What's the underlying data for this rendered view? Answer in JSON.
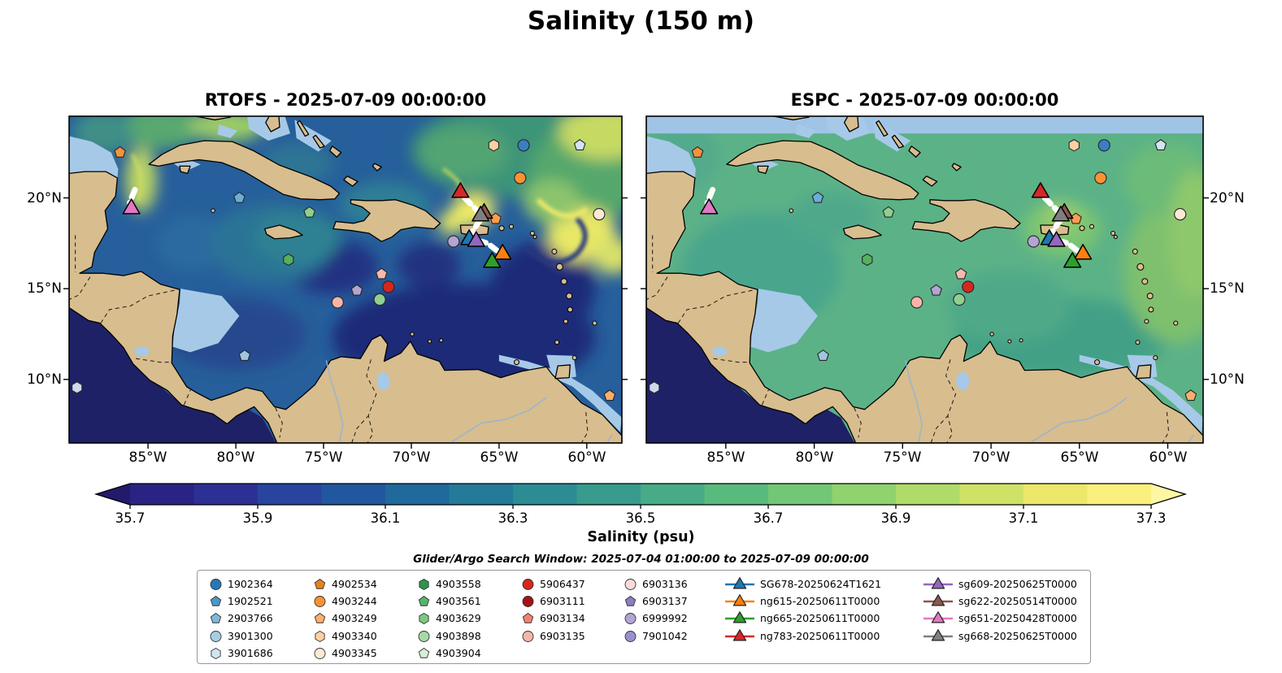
{
  "figure": {
    "title": "Salinity (150 m)",
    "colorbar_label": "Salinity (psu)",
    "search_window": "Glider/Argo Search Window: 2025-07-04 01:00:00 to 2025-07-09 00:00:00",
    "style": {
      "land_color": "#d8bd8e",
      "coastline": "#000000",
      "shallow_mask": "#a6c9e8",
      "pacific_deep": "#1f2166",
      "track_color": "#ffffff",
      "rtofs_base": "#265f9b",
      "espc_base": "#5cb287",
      "espc_top_band": "#a0c4e6"
    }
  },
  "panels": [
    {
      "id": "rtofs",
      "title": "RTOFS - 2025-07-09 00:00:00"
    },
    {
      "id": "espc",
      "title": "ESPC - 2025-07-09 00:00:00"
    }
  ],
  "axes": {
    "lon_ticks": [
      {
        "label": "85°W",
        "deg_west": 85
      },
      {
        "label": "80°W",
        "deg_west": 80
      },
      {
        "label": "75°W",
        "deg_west": 75
      },
      {
        "label": "70°W",
        "deg_west": 70
      },
      {
        "label": "65°W",
        "deg_west": 65
      },
      {
        "label": "60°W",
        "deg_west": 60
      }
    ],
    "lat_ticks": [
      {
        "label": "20°N",
        "deg_north": 20
      },
      {
        "label": "15°N",
        "deg_north": 15
      },
      {
        "label": "10°N",
        "deg_north": 10
      }
    ],
    "lon_range_deg_west": [
      89.5,
      58.0
    ],
    "lat_range_deg_north": [
      6.5,
      24.5
    ]
  },
  "colorbar": {
    "ticks": [
      "35.7",
      "35.9",
      "36.1",
      "36.3",
      "36.5",
      "36.7",
      "36.9",
      "37.1",
      "37.3"
    ],
    "min": 35.7,
    "max": 37.3,
    "bin": 0.1,
    "under_color": "#241a6b",
    "over_color": "#fdf7a3",
    "segment_colors": [
      "#2a2383",
      "#2c3095",
      "#28449f",
      "#21579e",
      "#1f699b",
      "#247a98",
      "#2d8b94",
      "#389b8e",
      "#46ab86",
      "#59ba7d",
      "#72c776",
      "#90d26e",
      "#b0db68",
      "#d0e266",
      "#ebe86a",
      "#f9f07d"
    ]
  },
  "legend": {
    "argo_columns": [
      [
        {
          "id": "1902364",
          "shape": "circle",
          "color": "#2878b8"
        },
        {
          "id": "1902521",
          "shape": "pentagon",
          "color": "#4a98c9"
        },
        {
          "id": "2903766",
          "shape": "pentagon",
          "color": "#7db8da"
        },
        {
          "id": "3901300",
          "shape": "circle",
          "color": "#a6cee3"
        },
        {
          "id": "3901686",
          "shape": "hexagon",
          "color": "#d0e4f2"
        }
      ],
      [
        {
          "id": "4902534",
          "shape": "pentagon",
          "color": "#e6821e"
        },
        {
          "id": "4903244",
          "shape": "circle",
          "color": "#fd9232"
        },
        {
          "id": "4903249",
          "shape": "pentagon",
          "color": "#fdae6b"
        },
        {
          "id": "4903340",
          "shape": "hexagon",
          "color": "#fdd0a2"
        },
        {
          "id": "4903345",
          "shape": "circle",
          "color": "#fee9d4"
        }
      ],
      [
        {
          "id": "4903558",
          "shape": "hexagon",
          "color": "#2e954a"
        },
        {
          "id": "4903561",
          "shape": "pentagon",
          "color": "#55b567"
        },
        {
          "id": "4903629",
          "shape": "hexagon",
          "color": "#7cc87c"
        },
        {
          "id": "4903898",
          "shape": "circle",
          "color": "#a5d9a5"
        },
        {
          "id": "4903904",
          "shape": "pentagon",
          "color": "#d6eed6"
        }
      ],
      [
        {
          "id": "5906437",
          "shape": "circle",
          "color": "#d7261e"
        },
        {
          "id": "6903111",
          "shape": "circle",
          "color": "#a81016"
        },
        {
          "id": "6903134",
          "shape": "pentagon",
          "color": "#f4826e"
        },
        {
          "id": "6903135",
          "shape": "circle",
          "color": "#f9b4a8"
        }
      ],
      [
        {
          "id": "6903136",
          "shape": "circle",
          "color": "#fbdcd8"
        },
        {
          "id": "6903137",
          "shape": "pentagon",
          "color": "#8d7cc0"
        },
        {
          "id": "6999992",
          "shape": "circle",
          "color": "#b3a5d4"
        },
        {
          "id": "7901042",
          "shape": "circle",
          "color": "#9a8fd0"
        }
      ]
    ],
    "glider_columns": [
      [
        {
          "id": "SG678-20250624T1621",
          "color": "#1f77b4"
        },
        {
          "id": "ng615-20250611T0000",
          "color": "#ff7f0e"
        },
        {
          "id": "ng665-20250611T0000",
          "color": "#2ca02c"
        },
        {
          "id": "ng783-20250611T0000",
          "color": "#d62728"
        }
      ],
      [
        {
          "id": "sg609-20250625T0000",
          "color": "#9467bd"
        },
        {
          "id": "sg622-20250514T0000",
          "color": "#8c564b"
        },
        {
          "id": "sg651-20250428T0000",
          "color": "#e377c2"
        },
        {
          "id": "sg668-20250625T0000",
          "color": "#7f7f7f"
        }
      ]
    ]
  },
  "map_markers": {
    "argo": [
      {
        "shape": "pentagon",
        "color": "#f5923e",
        "lon_w": 86.6,
        "lat_n": 22.5
      },
      {
        "shape": "hexagon",
        "color": "#fdd0a2",
        "lon_w": 65.3,
        "lat_n": 22.9
      },
      {
        "shape": "circle",
        "color": "#3a7fc1",
        "lon_w": 63.6,
        "lat_n": 22.9
      },
      {
        "shape": "pentagon",
        "color": "#d4e4f4",
        "lon_w": 60.4,
        "lat_n": 22.9
      },
      {
        "shape": "circle",
        "color": "#fd9232",
        "lon_w": 63.8,
        "lat_n": 21.1
      },
      {
        "shape": "circle",
        "color": "#fde9d2",
        "lon_w": 59.3,
        "lat_n": 19.1
      },
      {
        "shape": "pentagon",
        "color": "#6baed6",
        "lon_w": 79.8,
        "lat_n": 20.0
      },
      {
        "shape": "pentagon",
        "color": "#8fcf8f",
        "lon_w": 75.8,
        "lat_n": 19.2
      },
      {
        "shape": "hexagon",
        "color": "#55b060",
        "lon_w": 77.0,
        "lat_n": 16.6
      },
      {
        "shape": "circle",
        "color": "#b3a5d4",
        "lon_w": 67.6,
        "lat_n": 17.6
      },
      {
        "shape": "pentagon",
        "color": "#fd9d4c",
        "lon_w": 65.2,
        "lat_n": 18.85
      },
      {
        "shape": "pentagon",
        "color": "#f8b8ae",
        "lon_w": 71.7,
        "lat_n": 15.8
      },
      {
        "shape": "circle",
        "color": "#d7261e",
        "lon_w": 71.3,
        "lat_n": 15.1
      },
      {
        "shape": "pentagon",
        "color": "#b3a5cf",
        "lon_w": 73.1,
        "lat_n": 14.9
      },
      {
        "shape": "circle",
        "color": "#8fd08f",
        "lon_w": 71.8,
        "lat_n": 14.4
      },
      {
        "shape": "circle",
        "color": "#f9b4a8",
        "lon_w": 74.2,
        "lat_n": 14.25
      },
      {
        "shape": "pentagon",
        "color": "#9fc6e0",
        "lon_w": 79.5,
        "lat_n": 11.3
      },
      {
        "shape": "hexagon",
        "color": "#cfd8ec",
        "lon_w": 89.05,
        "lat_n": 9.55
      },
      {
        "shape": "pentagon",
        "color": "#fdae6b",
        "lon_w": 58.7,
        "lat_n": 9.1
      }
    ],
    "gliders": [
      {
        "id": "sg651",
        "color": "#e377c2",
        "lon_w": 85.95,
        "lat_n": 19.4
      },
      {
        "id": "ng783",
        "color": "#d62728",
        "lon_w": 67.2,
        "lat_n": 20.3
      },
      {
        "id": "sg622",
        "color": "#8c564b",
        "lon_w": 65.85,
        "lat_n": 19.15
      },
      {
        "id": "sg668",
        "color": "#7f7f7f",
        "lon_w": 66.05,
        "lat_n": 19.0
      },
      {
        "id": "SG678",
        "color": "#1f77b4",
        "lon_w": 66.7,
        "l at_n_unused": 0,
        "lat_n": 17.7
      },
      {
        "id": "sg609",
        "color": "#9467bd",
        "lon_w": 66.3,
        "lat_n": 17.6
      },
      {
        "id": "ng615",
        "color": "#ff7f0e",
        "lon_w": 64.8,
        "lat_n": 16.9
      },
      {
        "id": "ng665",
        "color": "#2ca02c",
        "lon_w": 65.4,
        "lat_n": 16.45
      }
    ],
    "tracks": [
      [
        [
          85.75,
          20.45
        ],
        [
          86.05,
          19.75
        ],
        [
          85.9,
          19.45
        ]
      ],
      [
        [
          66.95,
          20.0
        ],
        [
          66.15,
          19.2
        ]
      ],
      [
        [
          66.05,
          18.8
        ],
        [
          66.5,
          18.2
        ],
        [
          66.45,
          17.85
        ]
      ],
      [
        [
          66.2,
          17.65
        ],
        [
          65.65,
          17.5
        ],
        [
          65.05,
          17.05
        ]
      ]
    ]
  },
  "chart_data": [
    {
      "type": "heatmap",
      "title": "RTOFS - 2025-07-09 00:00:00",
      "variable": "Salinity (psu) at 150 m",
      "x_ticks": [
        "85°W",
        "80°W",
        "75°W",
        "70°W",
        "65°W",
        "60°W"
      ],
      "y_ticks": [
        "10°N",
        "15°N",
        "20°N"
      ],
      "x_range_deg_west": [
        89.5,
        58.0
      ],
      "y_range_deg_north": [
        6.5,
        24.5
      ],
      "color_range": [
        35.7,
        37.3
      ],
      "colorbar_ticks": [
        35.7,
        35.9,
        36.1,
        36.3,
        36.5,
        36.7,
        36.9,
        37.1,
        37.3
      ],
      "field_summary": "Low salinity 35.7-36.1 over the central and southeastern Caribbean, 36.1-36.5 in the western Caribbean and Gulf of Mexico, energetic high-salinity 36.7-37.3 filaments and eddies in the Atlantic north of 18N with yellow maxima near 66W 19N and 60W 18N"
    },
    {
      "type": "heatmap",
      "title": "ESPC - 2025-07-09 00:00:00",
      "variable": "Salinity (psu) at 150 m",
      "x_ticks": [
        "85°W",
        "80°W",
        "75°W",
        "70°W",
        "65°W",
        "60°W"
      ],
      "y_ticks": [
        "10°N",
        "15°N",
        "20°N"
      ],
      "x_range_deg_west": [
        89.5,
        58.0
      ],
      "y_range_deg_north": [
        6.5,
        24.5
      ],
      "color_range": [
        35.7,
        37.3
      ],
      "colorbar_ticks": [
        35.7,
        35.9,
        36.1,
        36.3,
        36.5,
        36.7,
        36.9,
        37.1,
        37.3
      ],
      "field_summary": "Relatively uniform 36.5-36.9 across the Caribbean and western Atlantic, slightly higher 36.9-37.1 east of 62W, light-blue masked band along the top edge and over shallow banks"
    }
  ]
}
